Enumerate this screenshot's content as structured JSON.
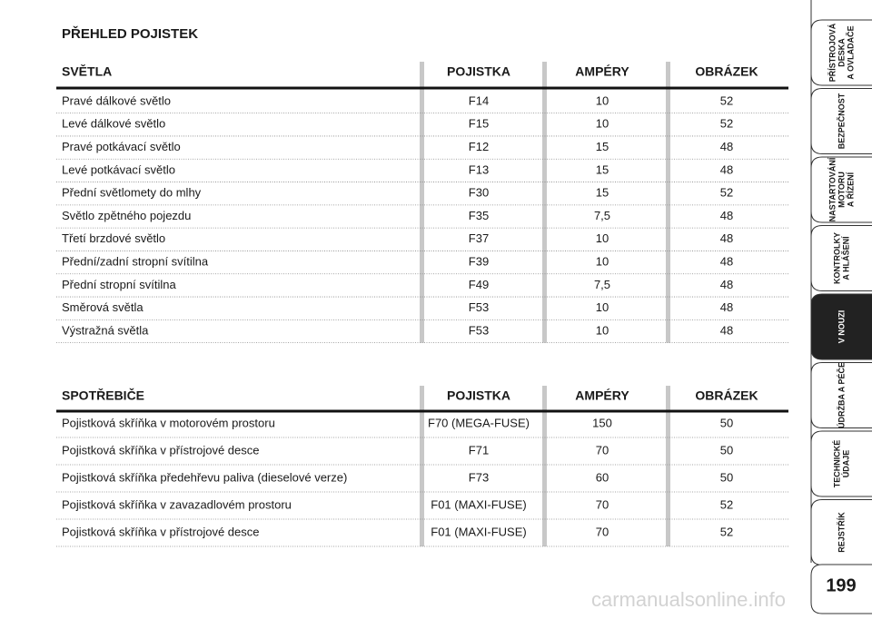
{
  "title": "PŘEHLED POJISTEK",
  "tables": [
    {
      "header": [
        "SVĚTLA",
        "POJISTKA",
        "AMPÉRY",
        "OBRÁZEK"
      ],
      "rows": [
        [
          "Pravé dálkové světlo",
          "F14",
          "10",
          "52"
        ],
        [
          "Levé dálkové světlo",
          "F15",
          "10",
          "52"
        ],
        [
          "Pravé potkávací světlo",
          "F12",
          "15",
          "48"
        ],
        [
          "Levé potkávací světlo",
          "F13",
          "15",
          "48"
        ],
        [
          "Přední světlomety do mlhy",
          "F30",
          "15",
          "52"
        ],
        [
          "Světlo zpětného pojezdu",
          "F35",
          "7,5",
          "48"
        ],
        [
          "Třetí brzdové světlo",
          "F37",
          "10",
          "48"
        ],
        [
          "Přední/zadní stropní svítilna",
          "F39",
          "10",
          "48"
        ],
        [
          "Přední stropní svítilna",
          "F49",
          "7,5",
          "48"
        ],
        [
          "Směrová světla",
          "F53",
          "10",
          "48"
        ],
        [
          "Výstražná světla",
          "F53",
          "10",
          "48"
        ]
      ]
    },
    {
      "header": [
        "SPOTŘEBIČE",
        "POJISTKA",
        "AMPÉRY",
        "OBRÁZEK"
      ],
      "rows": [
        [
          "Pojistková skříňka v motorovém prostoru",
          "F70 (MEGA-FUSE)",
          "150",
          "50"
        ],
        [
          "Pojistková skříňka v přístrojové desce",
          "F71",
          "70",
          "50"
        ],
        [
          "Pojistková skříňka předehřevu paliva (dieselové verze)",
          "F73",
          "60",
          "50"
        ],
        [
          "Pojistková skříňka v zavazadlovém prostoru",
          "F01 (MAXI-FUSE)",
          "70",
          "52"
        ],
        [
          "Pojistková skříňka v přístrojové desce",
          "F01 (MAXI-FUSE)",
          "70",
          "52"
        ]
      ]
    }
  ],
  "side_tabs": [
    [
      "PŘÍSTROJOVÁ",
      "DESKA",
      "A OVLADAČE"
    ],
    [
      "BEZPEČNOST"
    ],
    [
      "NASTARTOVÁNÍ",
      "MOTORU",
      "A ŘÍZENÍ"
    ],
    [
      "KONTROLKY",
      "A HLÁŠENÍ"
    ],
    [
      "V NOUZI"
    ],
    [
      "ÚDRŽBA A PÉČE"
    ],
    [
      "TECHNICKÉ",
      "ÚDAJE"
    ],
    [
      "REJSTŘÍK"
    ]
  ],
  "active_tab": 4,
  "page_number": "199",
  "watermark": "carmanualsonline.info"
}
